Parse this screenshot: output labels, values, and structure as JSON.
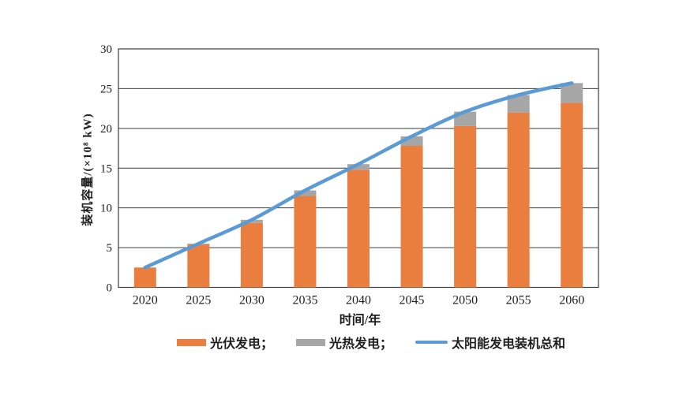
{
  "chart_data": {
    "type": "bar",
    "stacked": true,
    "categories": [
      "2020",
      "2025",
      "2030",
      "2035",
      "2040",
      "2045",
      "2050",
      "2055",
      "2060"
    ],
    "series": [
      {
        "name": "光伏发电",
        "kind": "bar",
        "color": "#EA7E3F",
        "values": [
          2.5,
          5.4,
          8.1,
          11.5,
          14.8,
          17.8,
          20.3,
          22.0,
          23.2
        ]
      },
      {
        "name": "光热发电",
        "kind": "bar",
        "color": "#A6A6A6",
        "values": [
          0.0,
          0.1,
          0.4,
          0.7,
          0.7,
          1.2,
          1.8,
          2.2,
          2.5
        ]
      },
      {
        "name": "太阳能发电装机总和",
        "kind": "line",
        "color": "#5B9BD5",
        "values": [
          2.5,
          5.5,
          8.5,
          12.2,
          15.5,
          19.0,
          22.1,
          24.2,
          25.7
        ]
      }
    ],
    "xlabel": "时间/年",
    "ylabel": "装机容量/(×10⁸ kW)",
    "ylim": [
      0,
      30
    ],
    "ytick_step": 5,
    "yticks": [
      "0",
      "5",
      "10",
      "15",
      "20",
      "25",
      "30"
    ],
    "grid": true,
    "grid_color": "#3d3d3d",
    "legend_position": "bottom"
  },
  "legend": {
    "items": [
      {
        "label": "光伏发电；"
      },
      {
        "label": "光热发电；"
      },
      {
        "label": "太阳能发电装机总和"
      }
    ]
  }
}
